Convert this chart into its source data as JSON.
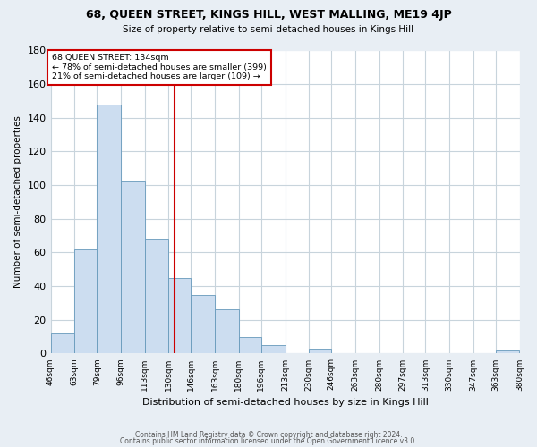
{
  "title": "68, QUEEN STREET, KINGS HILL, WEST MALLING, ME19 4JP",
  "subtitle": "Size of property relative to semi-detached houses in Kings Hill",
  "xlabel": "Distribution of semi-detached houses by size in Kings Hill",
  "ylabel": "Number of semi-detached properties",
  "bin_edges": [
    46,
    63,
    79,
    96,
    113,
    130,
    146,
    163,
    180,
    196,
    213,
    230,
    246,
    263,
    280,
    297,
    313,
    330,
    347,
    363,
    380
  ],
  "bar_heights": [
    12,
    62,
    148,
    102,
    68,
    45,
    35,
    26,
    10,
    5,
    0,
    3,
    0,
    0,
    0,
    0,
    0,
    0,
    0,
    2
  ],
  "bar_color": "#ccddf0",
  "bar_edge_color": "#6699bb",
  "property_size": 134,
  "property_line_color": "#cc0000",
  "annotation_line1": "68 QUEEN STREET: 134sqm",
  "annotation_line2": "← 78% of semi-detached houses are smaller (399)",
  "annotation_line3": "21% of semi-detached houses are larger (109) →",
  "annotation_box_color": "#ffffff",
  "annotation_box_edge_color": "#cc0000",
  "ylim": [
    0,
    180
  ],
  "yticks": [
    0,
    20,
    40,
    60,
    80,
    100,
    120,
    140,
    160,
    180
  ],
  "footer1": "Contains HM Land Registry data © Crown copyright and database right 2024.",
  "footer2": "Contains public sector information licensed under the Open Government Licence v3.0.",
  "bg_color": "#e8eef4",
  "plot_bg_color": "#ffffff",
  "grid_color": "#c8d4dc"
}
